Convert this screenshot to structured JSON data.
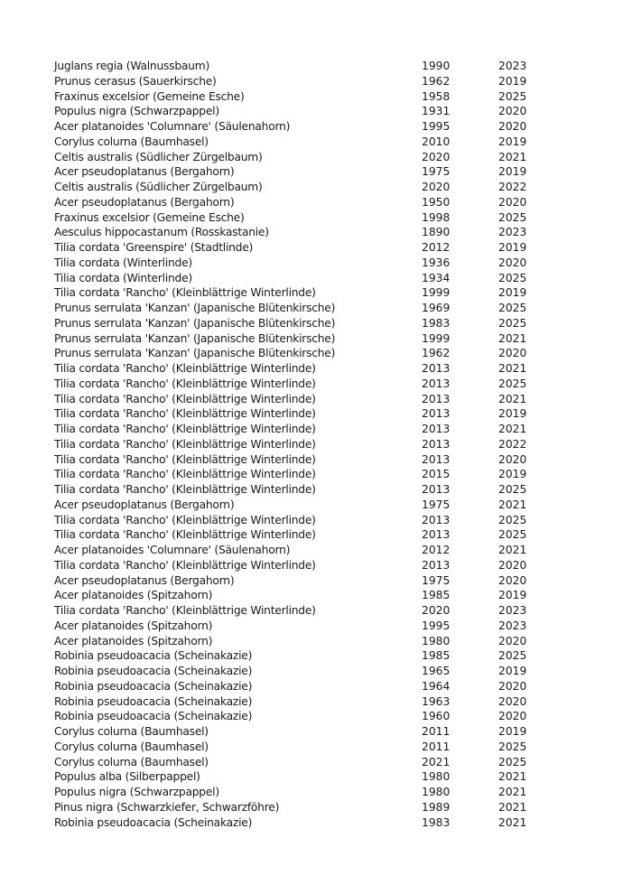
{
  "table": {
    "rows": [
      [
        "Juglans regia (Walnussbaum)",
        "1990",
        "2023"
      ],
      [
        "Prunus cerasus (Sauerkirsche)",
        "1962",
        "2019"
      ],
      [
        "Fraxinus excelsior (Gemeine Esche)",
        "1958",
        "2025"
      ],
      [
        "Populus nigra (Schwarzpappel)",
        "1931",
        "2020"
      ],
      [
        "Acer platanoides 'Columnare' (Säulenahorn)",
        "1995",
        "2020"
      ],
      [
        "Corylus colurna (Baumhasel)",
        "2010",
        "2019"
      ],
      [
        "Celtis australis (Südlicher Zürgelbaum)",
        "2020",
        "2021"
      ],
      [
        "Acer pseudoplatanus (Bergahorn)",
        "1975",
        "2019"
      ],
      [
        "Celtis australis (Südlicher Zürgelbaum)",
        "2020",
        "2022"
      ],
      [
        "Acer pseudoplatanus (Bergahorn)",
        "1950",
        "2020"
      ],
      [
        "Fraxinus excelsior (Gemeine Esche)",
        "1998",
        "2025"
      ],
      [
        "Aesculus hippocastanum (Rosskastanie)",
        "1890",
        "2023"
      ],
      [
        "Tilia cordata 'Greenspire' (Stadtlinde)",
        "2012",
        "2019"
      ],
      [
        "Tilia cordata (Winterlinde)",
        "1936",
        "2020"
      ],
      [
        "Tilia cordata (Winterlinde)",
        "1934",
        "2025"
      ],
      [
        "Tilia cordata 'Rancho' (Kleinblättrige Winterlinde)",
        "1999",
        "2019"
      ],
      [
        "Prunus serrulata 'Kanzan' (Japanische Blütenkirsche)",
        "1969",
        "2025"
      ],
      [
        "Prunus serrulata 'Kanzan' (Japanische Blütenkirsche)",
        "1983",
        "2025"
      ],
      [
        "Prunus serrulata 'Kanzan' (Japanische Blütenkirsche)",
        "1999",
        "2021"
      ],
      [
        "Prunus serrulata 'Kanzan' (Japanische Blütenkirsche)",
        "1962",
        "2020"
      ],
      [
        "Tilia cordata 'Rancho' (Kleinblättrige Winterlinde)",
        "2013",
        "2021"
      ],
      [
        "Tilia cordata 'Rancho' (Kleinblättrige Winterlinde)",
        "2013",
        "2025"
      ],
      [
        "Tilia cordata 'Rancho' (Kleinblättrige Winterlinde)",
        "2013",
        "2021"
      ],
      [
        "Tilia cordata 'Rancho' (Kleinblättrige Winterlinde)",
        "2013",
        "2019"
      ],
      [
        "Tilia cordata 'Rancho' (Kleinblättrige Winterlinde)",
        "2013",
        "2021"
      ],
      [
        "Tilia cordata 'Rancho' (Kleinblättrige Winterlinde)",
        "2013",
        "2022"
      ],
      [
        "Tilia cordata 'Rancho' (Kleinblättrige Winterlinde)",
        "2013",
        "2020"
      ],
      [
        "Tilia cordata 'Rancho' (Kleinblättrige Winterlinde)",
        "2015",
        "2019"
      ],
      [
        "Tilia cordata 'Rancho' (Kleinblättrige Winterlinde)",
        "2013",
        "2025"
      ],
      [
        "Acer pseudoplatanus (Bergahorn)",
        "1975",
        "2021"
      ],
      [
        "Tilia cordata 'Rancho' (Kleinblättrige Winterlinde)",
        "2013",
        "2025"
      ],
      [
        "Tilia cordata 'Rancho' (Kleinblättrige Winterlinde)",
        "2013",
        "2025"
      ],
      [
        "Acer platanoides 'Columnare' (Säulenahorn)",
        "2012",
        "2021"
      ],
      [
        "Tilia cordata 'Rancho' (Kleinblättrige Winterlinde)",
        "2013",
        "2020"
      ],
      [
        "Acer pseudoplatanus (Bergahorn)",
        "1975",
        "2020"
      ],
      [
        "Acer platanoides (Spitzahorn)",
        "1985",
        "2019"
      ],
      [
        "Tilia cordata 'Rancho' (Kleinblättrige Winterlinde)",
        "2020",
        "2023"
      ],
      [
        "Acer platanoides (Spitzahorn)",
        "1995",
        "2023"
      ],
      [
        "Acer platanoides (Spitzahorn)",
        "1980",
        "2020"
      ],
      [
        "Robinia pseudoacacia (Scheinakazie)",
        "1985",
        "2025"
      ],
      [
        "Robinia pseudoacacia (Scheinakazie)",
        "1965",
        "2019"
      ],
      [
        "Robinia pseudoacacia (Scheinakazie)",
        "1964",
        "2020"
      ],
      [
        "Robinia pseudoacacia (Scheinakazie)",
        "1963",
        "2020"
      ],
      [
        "Robinia pseudoacacia (Scheinakazie)",
        "1960",
        "2020"
      ],
      [
        "Corylus colurna (Baumhasel)",
        "2011",
        "2019"
      ],
      [
        "Corylus colurna (Baumhasel)",
        "2011",
        "2025"
      ],
      [
        "Corylus colurna (Baumhasel)",
        "2021",
        "2025"
      ],
      [
        "Populus alba (Silberpappel)",
        "1980",
        "2021"
      ],
      [
        "Populus nigra (Schwarzpappel)",
        "1980",
        "2021"
      ],
      [
        "Pinus nigra (Schwarzkiefer, Schwarzföhre)",
        "1989",
        "2021"
      ],
      [
        "Robinia pseudoacacia (Scheinakazie)",
        "1983",
        "2021"
      ]
    ]
  }
}
